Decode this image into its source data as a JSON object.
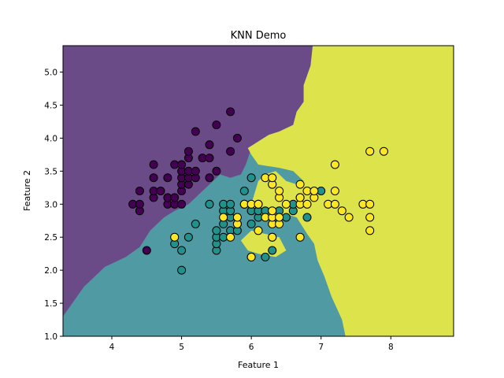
{
  "chart_data": {
    "type": "scatter",
    "title": "KNN Demo",
    "xlabel": "Feature 1",
    "ylabel": "Feature 2",
    "xlim": [
      3.3,
      8.9
    ],
    "ylim": [
      1.0,
      5.4
    ],
    "xticks": [
      4,
      5,
      6,
      7,
      8
    ],
    "yticks": [
      1.0,
      1.5,
      2.0,
      2.5,
      3.0,
      3.5,
      4.0,
      4.5,
      5.0
    ],
    "grid": false,
    "legend": "none",
    "region_colors": {
      "class_0": "#6b4a88",
      "class_1": "#4f9aa3",
      "class_2": "#dde34b"
    },
    "point_colors": {
      "class_0": "#440154",
      "class_1": "#21918c",
      "class_2": "#fde725"
    },
    "decision_regions": {
      "class_0": [
        [
          3.3,
          5.4
        ],
        [
          4.2,
          5.4
        ],
        [
          5.2,
          5.4
        ],
        [
          6.0,
          5.4
        ],
        [
          6.6,
          5.4
        ],
        [
          6.88,
          5.4
        ],
        [
          6.85,
          5.1
        ],
        [
          6.75,
          4.8
        ],
        [
          6.75,
          4.55
        ],
        [
          6.65,
          4.4
        ],
        [
          6.6,
          4.2
        ],
        [
          6.4,
          4.1
        ],
        [
          6.25,
          4.05
        ],
        [
          6.1,
          3.95
        ],
        [
          6.0,
          3.85
        ],
        [
          5.92,
          3.6
        ],
        [
          5.85,
          3.45
        ],
        [
          5.7,
          3.4
        ],
        [
          5.55,
          3.45
        ],
        [
          5.4,
          3.3
        ],
        [
          5.2,
          3.1
        ],
        [
          5.1,
          3.0
        ],
        [
          4.9,
          2.9
        ],
        [
          4.75,
          2.8
        ],
        [
          4.55,
          2.6
        ],
        [
          4.4,
          2.35
        ],
        [
          4.2,
          2.2
        ],
        [
          3.9,
          2.05
        ],
        [
          3.6,
          1.75
        ],
        [
          3.3,
          1.3
        ]
      ],
      "class_2": [
        [
          6.88,
          5.4
        ],
        [
          8.9,
          5.4
        ],
        [
          8.9,
          1.0
        ],
        [
          7.35,
          1.0
        ],
        [
          7.3,
          1.25
        ],
        [
          7.15,
          1.6
        ],
        [
          7.05,
          1.9
        ],
        [
          6.95,
          2.15
        ],
        [
          6.9,
          2.4
        ],
        [
          6.8,
          2.55
        ],
        [
          6.65,
          2.8
        ],
        [
          6.5,
          2.85
        ],
        [
          6.3,
          2.75
        ],
        [
          6.1,
          2.8
        ],
        [
          6.0,
          3.0
        ],
        [
          6.1,
          3.35
        ],
        [
          6.2,
          3.45
        ],
        [
          6.35,
          3.5
        ],
        [
          6.5,
          3.35
        ],
        [
          6.65,
          3.3
        ],
        [
          6.75,
          3.35
        ],
        [
          6.6,
          3.5
        ],
        [
          6.4,
          3.55
        ],
        [
          6.1,
          3.6
        ],
        [
          6.0,
          3.75
        ],
        [
          5.95,
          3.85
        ],
        [
          6.1,
          3.95
        ],
        [
          6.25,
          4.05
        ],
        [
          6.4,
          4.1
        ],
        [
          6.6,
          4.2
        ],
        [
          6.65,
          4.4
        ],
        [
          6.75,
          4.55
        ],
        [
          6.75,
          4.8
        ],
        [
          6.85,
          5.1
        ]
      ],
      "class_2_islands": [
        [
          [
            5.85,
            2.45
          ],
          [
            6.0,
            2.6
          ],
          [
            6.2,
            2.55
          ],
          [
            6.4,
            2.5
          ],
          [
            6.5,
            2.3
          ],
          [
            6.35,
            2.2
          ],
          [
            6.1,
            2.25
          ],
          [
            5.95,
            2.3
          ]
        ]
      ]
    },
    "series": [
      {
        "class": "class_0",
        "points": [
          [
            4.3,
            3.0
          ],
          [
            4.4,
            2.9
          ],
          [
            4.4,
            3.0
          ],
          [
            4.4,
            3.2
          ],
          [
            4.5,
            2.3
          ],
          [
            4.6,
            3.1
          ],
          [
            4.6,
            3.2
          ],
          [
            4.6,
            3.4
          ],
          [
            4.6,
            3.6
          ],
          [
            4.7,
            3.2
          ],
          [
            4.8,
            3.0
          ],
          [
            4.8,
            3.1
          ],
          [
            4.8,
            3.4
          ],
          [
            4.9,
            3.0
          ],
          [
            4.9,
            3.1
          ],
          [
            4.9,
            3.6
          ],
          [
            5.0,
            3.0
          ],
          [
            5.0,
            3.2
          ],
          [
            5.0,
            3.3
          ],
          [
            5.0,
            3.4
          ],
          [
            5.0,
            3.5
          ],
          [
            5.0,
            3.6
          ],
          [
            5.1,
            3.3
          ],
          [
            5.1,
            3.4
          ],
          [
            5.1,
            3.5
          ],
          [
            5.1,
            3.7
          ],
          [
            5.1,
            3.8
          ],
          [
            5.2,
            3.4
          ],
          [
            5.2,
            3.5
          ],
          [
            5.2,
            4.1
          ],
          [
            5.3,
            3.7
          ],
          [
            5.4,
            3.4
          ],
          [
            5.4,
            3.7
          ],
          [
            5.4,
            3.9
          ],
          [
            5.5,
            3.5
          ],
          [
            5.5,
            4.2
          ],
          [
            5.7,
            3.8
          ],
          [
            5.7,
            4.4
          ],
          [
            5.8,
            4.0
          ]
        ]
      },
      {
        "class": "class_1",
        "points": [
          [
            4.9,
            2.4
          ],
          [
            5.0,
            2.0
          ],
          [
            5.0,
            2.3
          ],
          [
            5.1,
            2.5
          ],
          [
            5.2,
            2.7
          ],
          [
            5.4,
            3.0
          ],
          [
            5.5,
            2.3
          ],
          [
            5.5,
            2.4
          ],
          [
            5.5,
            2.5
          ],
          [
            5.5,
            2.6
          ],
          [
            5.6,
            2.5
          ],
          [
            5.6,
            2.7
          ],
          [
            5.6,
            2.9
          ],
          [
            5.6,
            3.0
          ],
          [
            5.7,
            2.6
          ],
          [
            5.7,
            2.8
          ],
          [
            5.7,
            2.9
          ],
          [
            5.7,
            3.0
          ],
          [
            5.8,
            2.6
          ],
          [
            5.8,
            2.7
          ],
          [
            5.9,
            3.0
          ],
          [
            5.9,
            3.2
          ],
          [
            6.0,
            2.2
          ],
          [
            6.0,
            2.7
          ],
          [
            6.0,
            2.9
          ],
          [
            6.0,
            3.4
          ],
          [
            6.1,
            2.8
          ],
          [
            6.1,
            2.9
          ],
          [
            6.1,
            3.0
          ],
          [
            6.2,
            2.2
          ],
          [
            6.2,
            2.9
          ],
          [
            6.3,
            2.3
          ],
          [
            6.3,
            2.5
          ],
          [
            6.3,
            3.3
          ],
          [
            6.4,
            2.9
          ],
          [
            6.5,
            2.8
          ],
          [
            6.6,
            2.9
          ],
          [
            6.6,
            3.0
          ],
          [
            6.7,
            3.1
          ],
          [
            6.8,
            2.8
          ],
          [
            7.0,
            3.2
          ]
        ]
      },
      {
        "class": "class_2",
        "points": [
          [
            4.9,
            2.5
          ],
          [
            5.6,
            2.8
          ],
          [
            5.7,
            2.5
          ],
          [
            5.8,
            2.7
          ],
          [
            5.8,
            2.8
          ],
          [
            5.9,
            3.0
          ],
          [
            6.0,
            2.2
          ],
          [
            6.0,
            3.0
          ],
          [
            6.1,
            2.6
          ],
          [
            6.1,
            3.0
          ],
          [
            6.2,
            2.8
          ],
          [
            6.2,
            3.4
          ],
          [
            6.3,
            2.5
          ],
          [
            6.3,
            2.7
          ],
          [
            6.3,
            2.8
          ],
          [
            6.3,
            2.9
          ],
          [
            6.3,
            3.3
          ],
          [
            6.3,
            3.4
          ],
          [
            6.4,
            2.7
          ],
          [
            6.4,
            2.8
          ],
          [
            6.4,
            3.1
          ],
          [
            6.4,
            3.2
          ],
          [
            6.5,
            3.0
          ],
          [
            6.7,
            2.5
          ],
          [
            6.7,
            3.0
          ],
          [
            6.7,
            3.1
          ],
          [
            6.7,
            3.3
          ],
          [
            6.8,
            3.0
          ],
          [
            6.8,
            3.2
          ],
          [
            6.9,
            3.1
          ],
          [
            6.9,
            3.2
          ],
          [
            7.1,
            3.0
          ],
          [
            7.2,
            3.0
          ],
          [
            7.2,
            3.2
          ],
          [
            7.2,
            3.6
          ],
          [
            7.3,
            2.9
          ],
          [
            7.4,
            2.8
          ],
          [
            7.6,
            3.0
          ],
          [
            7.7,
            2.6
          ],
          [
            7.7,
            2.8
          ],
          [
            7.7,
            3.0
          ],
          [
            7.7,
            3.8
          ],
          [
            7.9,
            3.8
          ]
        ]
      }
    ]
  }
}
